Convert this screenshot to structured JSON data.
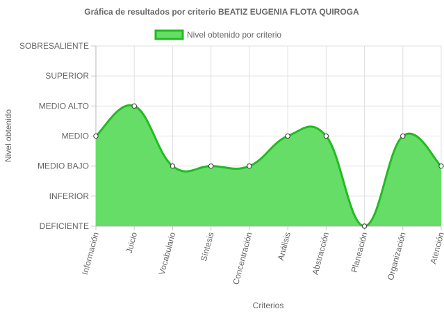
{
  "chart_data": {
    "type": "area",
    "title": "Gráfica de resultados por criterio BEATIZ EUGENIA FLOTA QUIROGA",
    "xlabel": "Criterios",
    "ylabel": "Nivel obtenido",
    "levels": [
      "DEFICIENTE",
      "INFERIOR",
      "MEDIO BAJO",
      "MEDIO",
      "MEDIO ALTO",
      "SUPERIOR",
      "SOBRESALIENTE"
    ],
    "categories": [
      "Información",
      "Juicio",
      "Vocabulario",
      "Síntesis",
      "Concentración",
      "Análisis",
      "Abstracción",
      "Planeación",
      "Organización",
      "Atención"
    ],
    "series": [
      {
        "name": "Nivel obtenido por criterio",
        "values": [
          "MEDIO",
          "MEDIO ALTO",
          "MEDIO BAJO",
          "MEDIO BAJO",
          "MEDIO BAJO",
          "MEDIO",
          "MEDIO",
          "DEFICIENTE",
          "MEDIO",
          "MEDIO BAJO"
        ],
        "fill_color": "#66dd66",
        "line_color": "#22bb22"
      }
    ],
    "legend": "top",
    "grid": true
  }
}
